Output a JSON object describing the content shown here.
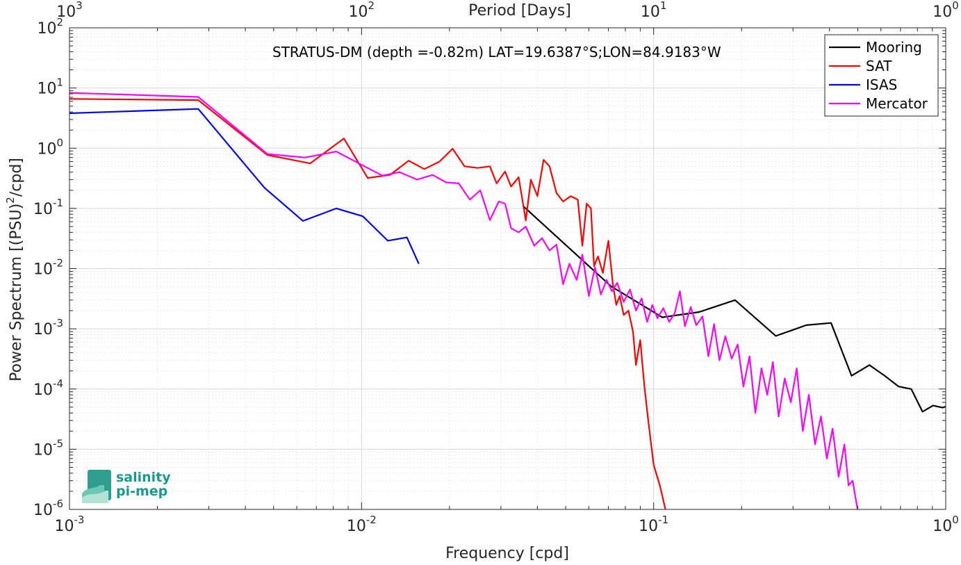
{
  "chart_data": {
    "type": "line",
    "xscale": "log",
    "yscale": "log",
    "xlim": [
      0.001,
      1
    ],
    "ylim": [
      1e-06,
      100
    ],
    "grid": true,
    "minor_grid": true,
    "xlabel": "Frequency [cpd]",
    "ylabel_main": "Power Spectrum [(PSU)",
    "ylabel_sup": "2",
    "ylabel_tail": "/cpd]",
    "top_xlabel": "Period [Days]",
    "annotation": "STRATUS-DM (depth =-0.82m) LAT=19.6387°S;LON=84.9183°W",
    "legend_position": "top-right",
    "x_ticks": [
      {
        "value": 0.001,
        "base": "10",
        "exp": "-3"
      },
      {
        "value": 0.01,
        "base": "10",
        "exp": "-2"
      },
      {
        "value": 0.1,
        "base": "10",
        "exp": "-1"
      },
      {
        "value": 1,
        "base": "10",
        "exp": "0"
      }
    ],
    "top_ticks": [
      {
        "value": 0.001,
        "base": "10",
        "exp": "3"
      },
      {
        "value": 0.01,
        "base": "10",
        "exp": "2"
      },
      {
        "value": 0.1,
        "base": "10",
        "exp": "1"
      },
      {
        "value": 1,
        "base": "10",
        "exp": "0"
      }
    ],
    "y_ticks": [
      {
        "value": 100,
        "base": "10",
        "exp": "2"
      },
      {
        "value": 10,
        "base": "10",
        "exp": "1"
      },
      {
        "value": 1,
        "base": "10",
        "exp": "0"
      },
      {
        "value": 0.1,
        "base": "10",
        "exp": "-1"
      },
      {
        "value": 0.01,
        "base": "10",
        "exp": "-2"
      },
      {
        "value": 0.001,
        "base": "10",
        "exp": "-3"
      },
      {
        "value": 0.0001,
        "base": "10",
        "exp": "-4"
      },
      {
        "value": 1e-05,
        "base": "10",
        "exp": "-5"
      },
      {
        "value": 1e-06,
        "base": "10",
        "exp": "-6"
      }
    ],
    "series": [
      {
        "name": "Mooring",
        "color": "#000000",
        "points": [
          [
            0.0357,
            0.11
          ],
          [
            0.0714,
            0.0051
          ],
          [
            0.107,
            0.00155
          ],
          [
            0.143,
            0.0019
          ],
          [
            0.19,
            0.003
          ],
          [
            0.262,
            0.00076
          ],
          [
            0.333,
            0.00115
          ],
          [
            0.405,
            0.00125
          ],
          [
            0.476,
            0.000166
          ],
          [
            0.548,
            0.00025
          ],
          [
            0.619,
            0.000165
          ],
          [
            0.69,
            0.00011
          ],
          [
            0.762,
            0.0001
          ],
          [
            0.833,
            4.2e-05
          ],
          [
            0.905,
            5.3e-05
          ],
          [
            0.976,
            4.9e-05
          ],
          [
            1.0,
            5.1e-05
          ]
        ]
      },
      {
        "name": "SAT",
        "color": "#ff0000",
        "points": [
          [
            0.001,
            6.6
          ],
          [
            0.00276,
            6.3
          ],
          [
            0.00476,
            0.77
          ],
          [
            0.00667,
            0.56
          ],
          [
            0.0087,
            1.45
          ],
          [
            0.0105,
            0.32
          ],
          [
            0.0125,
            0.36
          ],
          [
            0.0145,
            0.62
          ],
          [
            0.0164,
            0.45
          ],
          [
            0.0185,
            0.6
          ],
          [
            0.0205,
            0.98
          ],
          [
            0.0225,
            0.5
          ],
          [
            0.025,
            0.47
          ],
          [
            0.0275,
            0.5
          ],
          [
            0.029,
            0.26
          ],
          [
            0.031,
            0.41
          ],
          [
            0.0325,
            0.23
          ],
          [
            0.0345,
            0.33
          ],
          [
            0.0365,
            0.063
          ],
          [
            0.038,
            0.3
          ],
          [
            0.04,
            0.16
          ],
          [
            0.042,
            0.64
          ],
          [
            0.044,
            0.5
          ],
          [
            0.0465,
            0.18
          ],
          [
            0.049,
            0.13
          ],
          [
            0.052,
            0.16
          ],
          [
            0.055,
            0.14
          ],
          [
            0.057,
            0.024
          ],
          [
            0.059,
            0.12
          ],
          [
            0.061,
            0.1
          ],
          [
            0.0625,
            0.011
          ],
          [
            0.0645,
            0.016
          ],
          [
            0.067,
            0.0085
          ],
          [
            0.07,
            0.029
          ],
          [
            0.0725,
            0.0055
          ],
          [
            0.0745,
            0.0025
          ],
          [
            0.0765,
            0.0035
          ],
          [
            0.079,
            0.0017
          ],
          [
            0.082,
            0.002
          ],
          [
            0.085,
            0.0009
          ],
          [
            0.087,
            0.00025
          ],
          [
            0.09,
            0.00065
          ],
          [
            0.093,
            0.00011
          ],
          [
            0.096,
            2.8e-05
          ],
          [
            0.1,
            5.5e-06
          ],
          [
            0.105,
            2.5e-06
          ],
          [
            0.11,
            9.5e-07
          ]
        ]
      },
      {
        "name": "ISAS",
        "color": "#0000ff",
        "points": [
          [
            0.001,
            3.8
          ],
          [
            0.00276,
            4.5
          ],
          [
            0.00465,
            0.22
          ],
          [
            0.0063,
            0.062
          ],
          [
            0.0082,
            0.1
          ],
          [
            0.0101,
            0.074
          ],
          [
            0.0123,
            0.029
          ],
          [
            0.0143,
            0.033
          ],
          [
            0.0157,
            0.012
          ]
        ]
      },
      {
        "name": "Mercator",
        "color": "#ff00ff",
        "points": [
          [
            0.001,
            8.3
          ],
          [
            0.00276,
            7.1
          ],
          [
            0.00476,
            0.8
          ],
          [
            0.0064,
            0.7
          ],
          [
            0.0082,
            0.88
          ],
          [
            0.01,
            0.53
          ],
          [
            0.0118,
            0.35
          ],
          [
            0.0135,
            0.4
          ],
          [
            0.0155,
            0.3
          ],
          [
            0.0175,
            0.36
          ],
          [
            0.0195,
            0.27
          ],
          [
            0.0215,
            0.26
          ],
          [
            0.0235,
            0.14
          ],
          [
            0.0255,
            0.2
          ],
          [
            0.0275,
            0.064
          ],
          [
            0.0295,
            0.13
          ],
          [
            0.031,
            0.12
          ],
          [
            0.0325,
            0.047
          ],
          [
            0.0345,
            0.04
          ],
          [
            0.0365,
            0.05
          ],
          [
            0.039,
            0.024
          ],
          [
            0.0415,
            0.032
          ],
          [
            0.044,
            0.02
          ],
          [
            0.0465,
            0.025
          ],
          [
            0.049,
            0.0055
          ],
          [
            0.0515,
            0.012
          ],
          [
            0.0545,
            0.0065
          ],
          [
            0.057,
            0.017
          ],
          [
            0.06,
            0.0035
          ],
          [
            0.063,
            0.0105
          ],
          [
            0.066,
            0.0037
          ],
          [
            0.069,
            0.0065
          ],
          [
            0.072,
            0.0042
          ],
          [
            0.075,
            0.0058
          ],
          [
            0.079,
            0.0028
          ],
          [
            0.083,
            0.0045
          ],
          [
            0.087,
            0.002
          ],
          [
            0.091,
            0.0032
          ],
          [
            0.095,
            0.0013
          ],
          [
            0.099,
            0.0025
          ],
          [
            0.103,
            0.0015
          ],
          [
            0.108,
            0.0022
          ],
          [
            0.113,
            0.0013
          ],
          [
            0.118,
            0.0018
          ],
          [
            0.123,
            0.0042
          ],
          [
            0.128,
            0.0011
          ],
          [
            0.134,
            0.0023
          ],
          [
            0.14,
            0.00115
          ],
          [
            0.147,
            0.0016
          ],
          [
            0.154,
            0.00035
          ],
          [
            0.161,
            0.0012
          ],
          [
            0.168,
            0.0003
          ],
          [
            0.176,
            0.00075
          ],
          [
            0.185,
            0.00032
          ],
          [
            0.194,
            0.00055
          ],
          [
            0.203,
            0.00011
          ],
          [
            0.213,
            0.00035
          ],
          [
            0.223,
            4e-05
          ],
          [
            0.234,
            0.00022
          ],
          [
            0.245,
            8e-05
          ],
          [
            0.256,
            0.00028
          ],
          [
            0.268,
            3.5e-05
          ],
          [
            0.281,
            0.00015
          ],
          [
            0.295,
            6e-05
          ],
          [
            0.309,
            0.00022
          ],
          [
            0.324,
            2e-05
          ],
          [
            0.34,
            8e-05
          ],
          [
            0.357,
            1.2e-05
          ],
          [
            0.374,
            3.5e-05
          ],
          [
            0.392,
            7e-06
          ],
          [
            0.41,
            2.2e-05
          ],
          [
            0.43,
            3.5e-06
          ],
          [
            0.45,
            1.2e-05
          ],
          [
            0.465,
            2.5e-06
          ],
          [
            0.48,
            3e-06
          ],
          [
            0.492,
            1.5e-06
          ],
          [
            0.5,
            9.5e-07
          ]
        ]
      }
    ]
  },
  "logo": {
    "line1": "salinity",
    "line2": "pi-mep"
  }
}
